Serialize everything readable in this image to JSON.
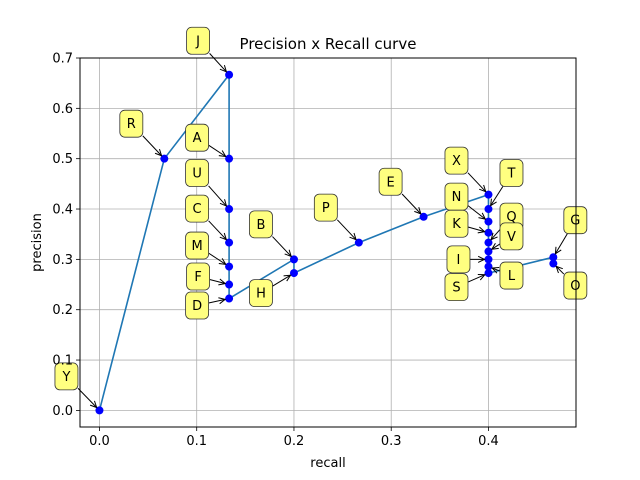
{
  "chart_data": {
    "type": "line",
    "title": "Precision x Recall curve",
    "xlabel": "recall",
    "ylabel": "precision",
    "xlim": [
      -0.02,
      0.49
    ],
    "ylim": [
      -0.033,
      0.7
    ],
    "xticks": [
      0.0,
      0.1,
      0.2,
      0.3,
      0.4
    ],
    "yticks": [
      0.0,
      0.1,
      0.2,
      0.3,
      0.4,
      0.5,
      0.6,
      0.7
    ],
    "xtick_labels": [
      "0.0",
      "0.1",
      "0.2",
      "0.3",
      "0.4"
    ],
    "ytick_labels": [
      "0.0",
      "0.1",
      "0.2",
      "0.3",
      "0.4",
      "0.5",
      "0.6",
      "0.7"
    ],
    "grid": true,
    "line_color": "#1f77b4",
    "marker_color": "#0000ff",
    "annotation_box_color": "#ffff80",
    "series": [
      {
        "x": [
          0.0,
          0.0667,
          0.1333,
          0.1333,
          0.1333,
          0.1333,
          0.1333,
          0.1333,
          0.1333,
          0.2,
          0.2,
          0.2667,
          0.3333,
          0.4,
          0.4,
          0.4,
          0.4,
          0.4,
          0.4,
          0.4,
          0.4,
          0.4,
          0.4667,
          0.4667
        ],
        "y": [
          0.0,
          0.5,
          0.6667,
          0.5,
          0.4,
          0.3333,
          0.2857,
          0.25,
          0.2222,
          0.3,
          0.2727,
          0.3333,
          0.3846,
          0.4286,
          0.4,
          0.375,
          0.3529,
          0.3333,
          0.3158,
          0.3,
          0.2857,
          0.2727,
          0.3043,
          0.2917
        ]
      }
    ],
    "annotations": [
      {
        "label": "Y",
        "x": 0.0,
        "y": 0.0,
        "dx": -33,
        "dy": -34
      },
      {
        "label": "R",
        "x": 0.0667,
        "y": 0.5,
        "dx": -33,
        "dy": -35
      },
      {
        "label": "J",
        "x": 0.1333,
        "y": 0.6667,
        "dx": -31,
        "dy": -34
      },
      {
        "label": "A",
        "x": 0.1333,
        "y": 0.5,
        "dx": -32,
        "dy": -21
      },
      {
        "label": "U",
        "x": 0.1333,
        "y": 0.4,
        "dx": -32,
        "dy": -36
      },
      {
        "label": "C",
        "x": 0.1333,
        "y": 0.3333,
        "dx": -32,
        "dy": -34
      },
      {
        "label": "M",
        "x": 0.1333,
        "y": 0.2857,
        "dx": -32,
        "dy": -21
      },
      {
        "label": "F",
        "x": 0.1333,
        "y": 0.25,
        "dx": -31,
        "dy": -8
      },
      {
        "label": "D",
        "x": 0.1333,
        "y": 0.2222,
        "dx": -32,
        "dy": 7
      },
      {
        "label": "B",
        "x": 0.2,
        "y": 0.3,
        "dx": -33,
        "dy": -35
      },
      {
        "label": "H",
        "x": 0.2,
        "y": 0.2727,
        "dx": -33,
        "dy": 20
      },
      {
        "label": "P",
        "x": 0.2667,
        "y": 0.3333,
        "dx": -33,
        "dy": -35
      },
      {
        "label": "E",
        "x": 0.3333,
        "y": 0.3846,
        "dx": -33,
        "dy": -35
      },
      {
        "label": "X",
        "x": 0.4,
        "y": 0.4286,
        "dx": -32,
        "dy": -34
      },
      {
        "label": "N",
        "x": 0.4,
        "y": 0.375,
        "dx": -32,
        "dy": -25
      },
      {
        "label": "K",
        "x": 0.4,
        "y": 0.3529,
        "dx": -32,
        "dy": -9
      },
      {
        "label": "I",
        "x": 0.4,
        "y": 0.3,
        "dx": -30,
        "dy": 0
      },
      {
        "label": "S",
        "x": 0.4,
        "y": 0.2727,
        "dx": -32,
        "dy": 14
      },
      {
        "label": "T",
        "x": 0.4,
        "y": 0.4,
        "dx": 23,
        "dy": -36
      },
      {
        "label": "Q",
        "x": 0.4,
        "y": 0.3333,
        "dx": 23,
        "dy": -26
      },
      {
        "label": "V",
        "x": 0.4,
        "y": 0.3158,
        "dx": 23,
        "dy": -15
      },
      {
        "label": "L",
        "x": 0.4,
        "y": 0.2857,
        "dx": 23,
        "dy": 9
      },
      {
        "label": "G",
        "x": 0.4667,
        "y": 0.3043,
        "dx": 22,
        "dy": -37
      },
      {
        "label": "O",
        "x": 0.4667,
        "y": 0.2917,
        "dx": 22,
        "dy": 22
      }
    ]
  }
}
